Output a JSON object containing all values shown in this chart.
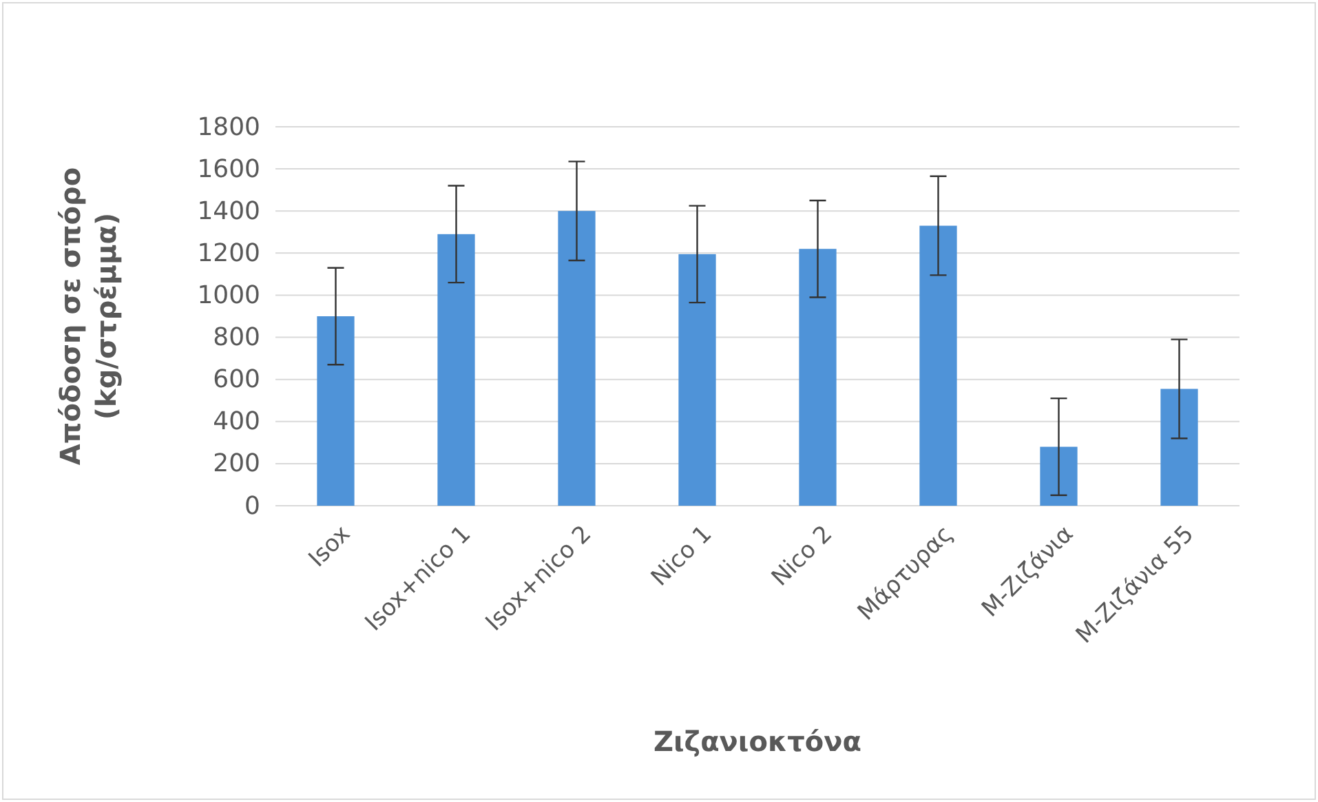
{
  "chart_data": {
    "type": "bar",
    "xlabel": "Ζιζανιοκτόνα",
    "ylabel": "Απόδοση σε σπόρο (kg/στρέμμα)",
    "categories": [
      "Isox",
      "Isox+nico 1",
      "Isox+nico 2",
      "Nico 1",
      "Nico 2",
      "Μάρτυρας",
      "M-Ζιζάνια",
      "M-Ζιζάνια 55"
    ],
    "values": [
      900,
      1290,
      1400,
      1195,
      1220,
      1330,
      280,
      555
    ],
    "errors": [
      230,
      230,
      235,
      230,
      230,
      235,
      230,
      235
    ],
    "color": "#4f93d8",
    "ylim": [
      0,
      1800
    ],
    "yticks": [
      0,
      200,
      400,
      600,
      800,
      1000,
      1200,
      1400,
      1600,
      1800
    ],
    "grid": "y"
  }
}
